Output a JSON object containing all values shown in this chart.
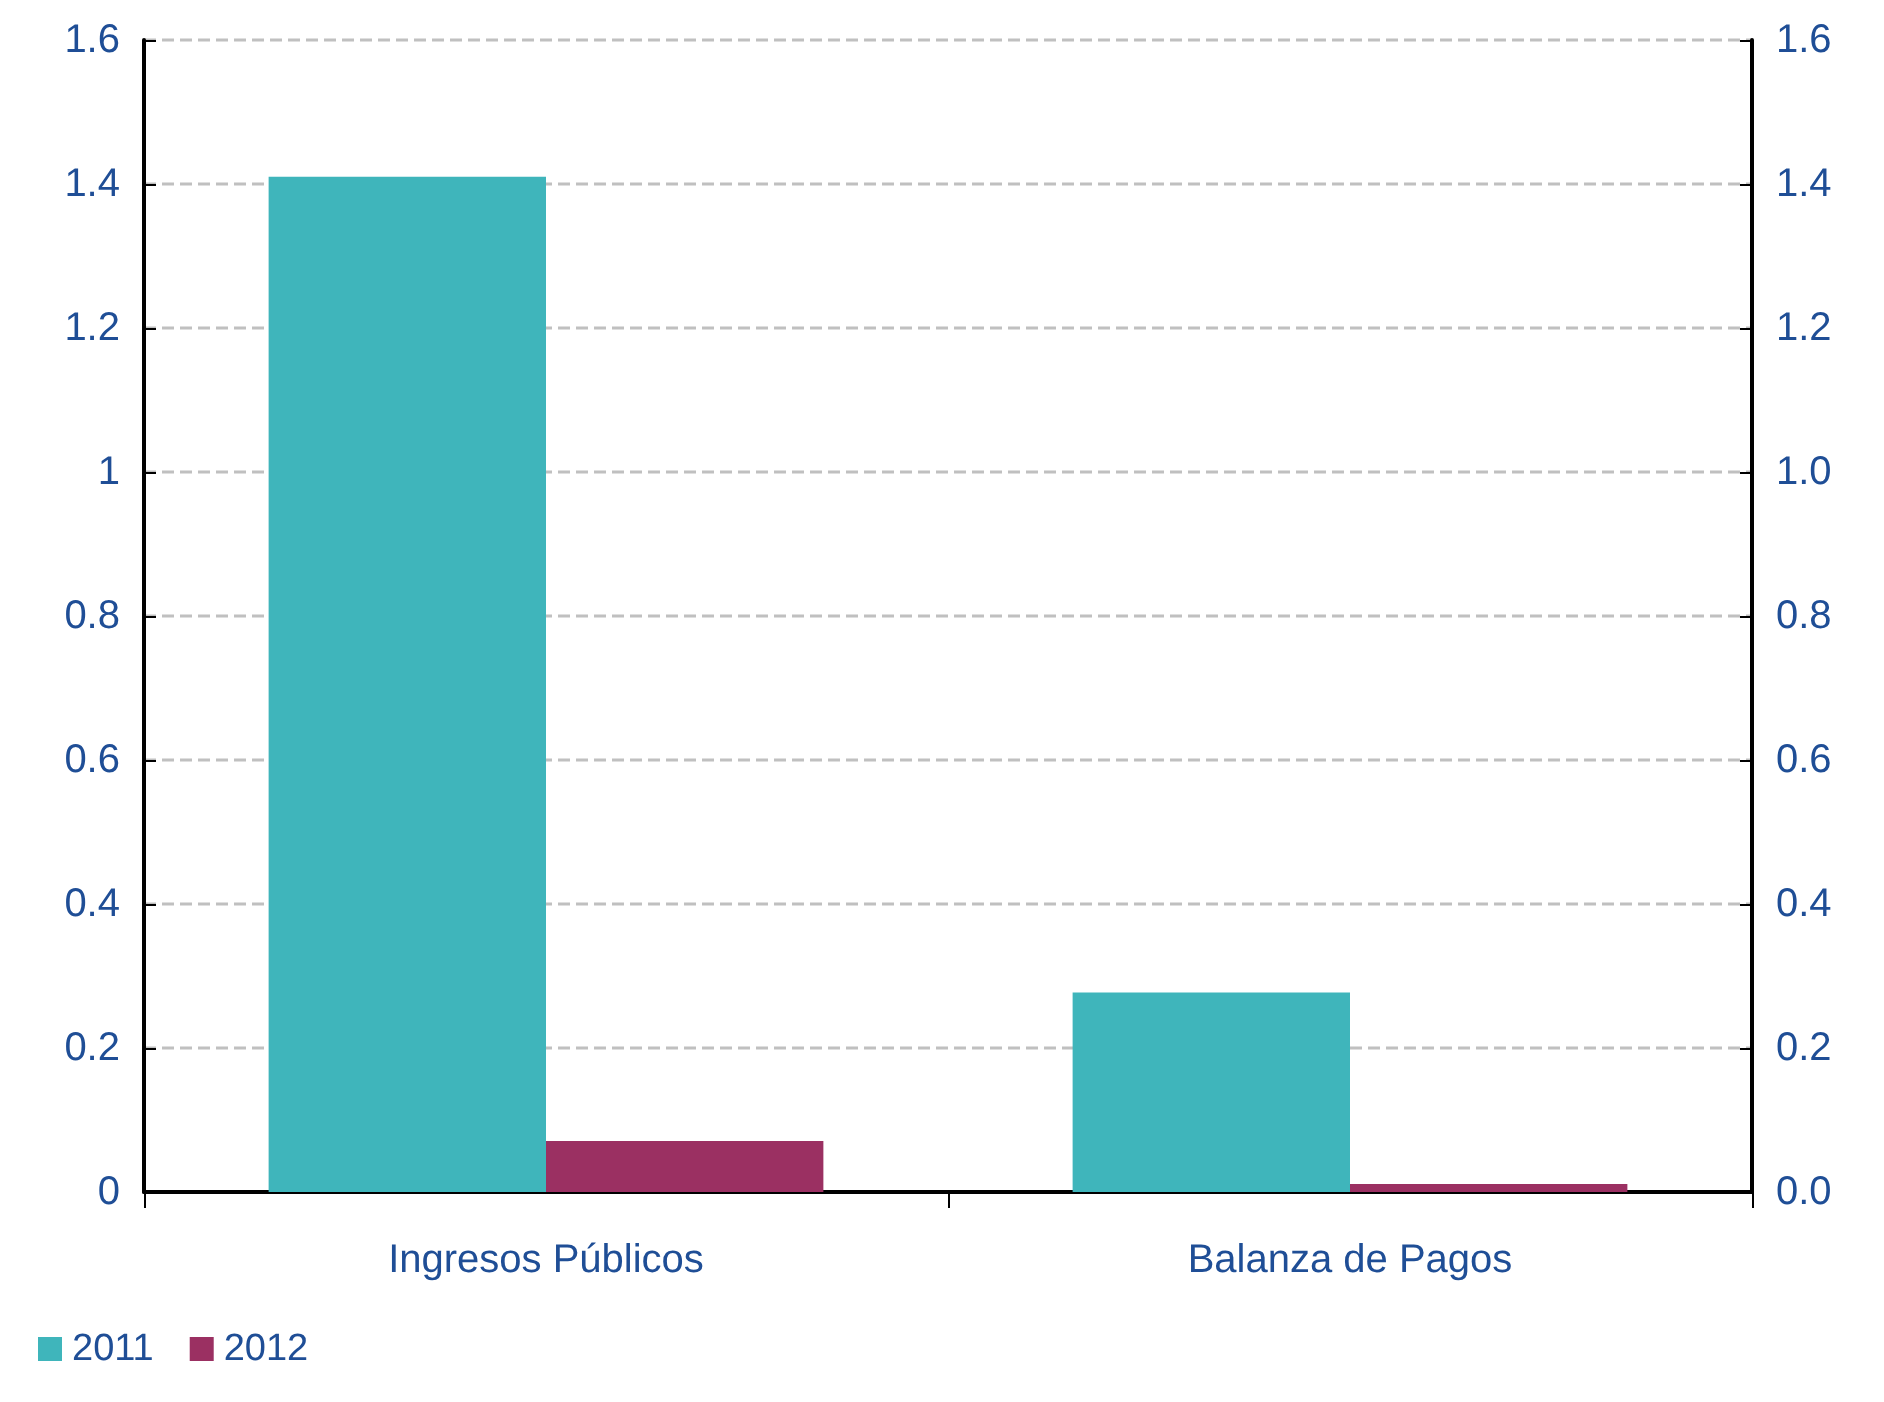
{
  "chart_data": {
    "type": "bar",
    "categories": [
      "Ingresos Públicos",
      "Balanza de Pagos"
    ],
    "series": [
      {
        "name": "2011",
        "color": "#3fb5bb",
        "values": [
          1.41,
          0.277
        ]
      },
      {
        "name": "2012",
        "color": "#9b3062",
        "values": [
          0.071,
          0.011
        ]
      }
    ],
    "ylim": [
      0,
      1.6
    ],
    "yticks": [
      0,
      0.2,
      0.4,
      0.6,
      0.8,
      1,
      1.2,
      1.4,
      1.6
    ],
    "y2lim": [
      0,
      1.6
    ],
    "y2ticks": [
      {
        "value": 0,
        "label": "0.0"
      },
      0.2,
      0.4,
      0.6,
      0.8,
      {
        "value": 1,
        "label": "1.0"
      },
      1.2,
      1.4,
      1.6
    ],
    "grid": "y",
    "legend": "bottom left"
  }
}
